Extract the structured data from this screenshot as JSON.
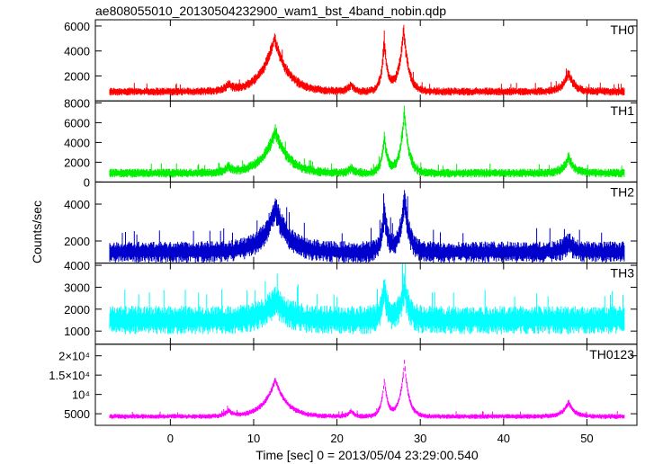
{
  "chart_data": {
    "type": "line",
    "title": "ae808055010_20130504232900_wam1_bst_4band_nobin.qdp",
    "xlabel": "Time [sec] 0 = 2013/05/04 23:29:00.540",
    "ylabel": "Counts/sec",
    "xlim": [
      -9,
      56
    ],
    "xticks": [
      0,
      10,
      20,
      30,
      40,
      50
    ],
    "xticklabels": [
      "0",
      "10",
      "20",
      "30",
      "40",
      "50"
    ],
    "grid": false,
    "panels": [
      {
        "name": "TH0",
        "color": "#ff0000",
        "ylim": [
          0,
          6500
        ],
        "yticks": [
          2000,
          4000,
          6000
        ],
        "yticklabels": [
          "2000",
          "4000",
          "6000"
        ],
        "baseline": 750,
        "noise": 500,
        "peaks": [
          {
            "x": 12.5,
            "height": 4300,
            "width": 1.6
          },
          {
            "x": 25.7,
            "height": 3800,
            "width": 0.4
          },
          {
            "x": 28.0,
            "height": 5000,
            "width": 0.6
          },
          {
            "x": 47.8,
            "height": 1500,
            "width": 0.7
          }
        ],
        "bumps": [
          {
            "x": 7.0,
            "height": 500,
            "width": 0.5
          },
          {
            "x": 21.7,
            "height": 600,
            "width": 0.4
          }
        ]
      },
      {
        "name": "TH1",
        "color": "#00ee00",
        "ylim": [
          0,
          8200
        ],
        "yticks": [
          0,
          2000,
          4000,
          6000,
          8000
        ],
        "yticklabels": [
          "0",
          "2000",
          "4000",
          "6000",
          "8000"
        ],
        "baseline": 900,
        "noise": 700,
        "peaks": [
          {
            "x": 12.6,
            "height": 4200,
            "width": 1.6
          },
          {
            "x": 25.7,
            "height": 3600,
            "width": 0.4
          },
          {
            "x": 28.1,
            "height": 6200,
            "width": 0.55
          },
          {
            "x": 47.8,
            "height": 1600,
            "width": 0.7
          }
        ],
        "bumps": [
          {
            "x": 7.0,
            "height": 600,
            "width": 0.5
          },
          {
            "x": 21.7,
            "height": 500,
            "width": 0.4
          }
        ]
      },
      {
        "name": "TH2",
        "color": "#0000cc",
        "ylim": [
          800,
          5200
        ],
        "yticks": [
          2000,
          4000
        ],
        "yticklabels": [
          "2000",
          "4000"
        ],
        "baseline": 1400,
        "noise": 900,
        "peaks": [
          {
            "x": 12.6,
            "height": 2400,
            "width": 1.5
          },
          {
            "x": 25.7,
            "height": 2200,
            "width": 0.4
          },
          {
            "x": 28.1,
            "height": 3000,
            "width": 0.55
          },
          {
            "x": 47.8,
            "height": 500,
            "width": 0.7
          }
        ],
        "bumps": []
      },
      {
        "name": "TH3",
        "color": "#00ffff",
        "ylim": [
          400,
          4100
        ],
        "yticks": [
          1000,
          2000,
          3000,
          4000
        ],
        "yticklabels": [
          "1000",
          "2000",
          "3000",
          "4000"
        ],
        "baseline": 1500,
        "noise": 1000,
        "peaks": [
          {
            "x": 12.6,
            "height": 900,
            "width": 1.5
          },
          {
            "x": 25.7,
            "height": 1400,
            "width": 0.4
          },
          {
            "x": 28.1,
            "height": 1600,
            "width": 0.55
          }
        ],
        "bumps": []
      },
      {
        "name": "TH0123",
        "color": "#ff00ff",
        "ylim": [
          2000,
          23000
        ],
        "yticks": [
          5000,
          10000,
          15000,
          20000
        ],
        "yticklabels": [
          "5000",
          "10⁴",
          "1.5×10⁴",
          "2×10⁴"
        ],
        "baseline": 4300,
        "noise": 1000,
        "peaks": [
          {
            "x": 12.6,
            "height": 9500,
            "width": 1.4
          },
          {
            "x": 25.7,
            "height": 9500,
            "width": 0.4
          },
          {
            "x": 28.1,
            "height": 14000,
            "width": 0.55
          },
          {
            "x": 47.8,
            "height": 3700,
            "width": 0.7
          }
        ],
        "bumps": [
          {
            "x": 7.0,
            "height": 1500,
            "width": 0.5
          },
          {
            "x": 21.7,
            "height": 1500,
            "width": 0.4
          }
        ]
      }
    ]
  }
}
